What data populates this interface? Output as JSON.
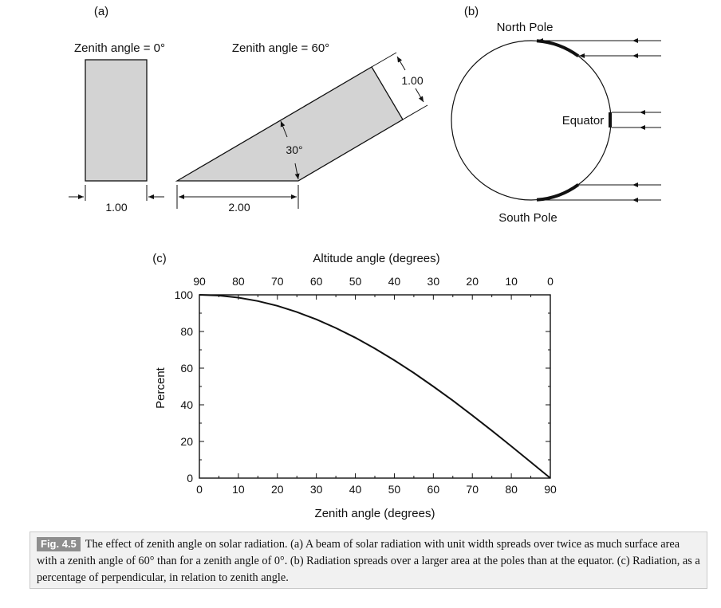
{
  "panel_a": {
    "panel_label": "(a)",
    "left_title": "Zenith angle = 0°",
    "right_title": "Zenith angle = 60°",
    "left_width": "1.00",
    "right_width": "2.00",
    "beam_width": "1.00",
    "angle": "30°",
    "fill_color": "#d3d3d3"
  },
  "panel_b": {
    "panel_label": "(b)",
    "north": "North Pole",
    "equator": "Equator",
    "south": "South Pole"
  },
  "panel_c": {
    "panel_label": "(c)"
  },
  "chart_data": {
    "type": "line",
    "title": "",
    "xlabel": "Zenith angle (degrees)",
    "ylabel": "Percent",
    "top_axis_label": "Altitude angle (degrees)",
    "xlim": [
      0,
      90
    ],
    "ylim": [
      0,
      100
    ],
    "x_ticks": [
      "0",
      "10",
      "20",
      "30",
      "40",
      "50",
      "60",
      "70",
      "80",
      "90"
    ],
    "top_ticks": [
      "90",
      "80",
      "70",
      "60",
      "50",
      "40",
      "30",
      "20",
      "10",
      "0"
    ],
    "y_ticks": [
      "0",
      "20",
      "40",
      "60",
      "80",
      "100"
    ],
    "grid": false,
    "series": [
      {
        "x": [
          0,
          5,
          10,
          15,
          20,
          25,
          30,
          35,
          40,
          45,
          50,
          55,
          60,
          65,
          70,
          75,
          80,
          85,
          90
        ],
        "values": [
          100,
          99.6,
          98.5,
          96.6,
          94.0,
          90.6,
          86.6,
          81.9,
          76.6,
          70.7,
          64.3,
          57.4,
          50.0,
          42.3,
          34.2,
          25.9,
          17.4,
          8.7,
          0
        ]
      }
    ]
  },
  "caption": {
    "tag": "Fig. 4.5",
    "text": "The effect of zenith angle on solar radiation. (a) A beam of solar radiation with unit width spreads over twice as much surface area with a zenith angle of 60° than for a zenith angle of 0°. (b) Radiation spreads over a larger area at the poles than at the equator. (c) Radiation, as a percentage of perpendicular, in relation to zenith angle."
  }
}
